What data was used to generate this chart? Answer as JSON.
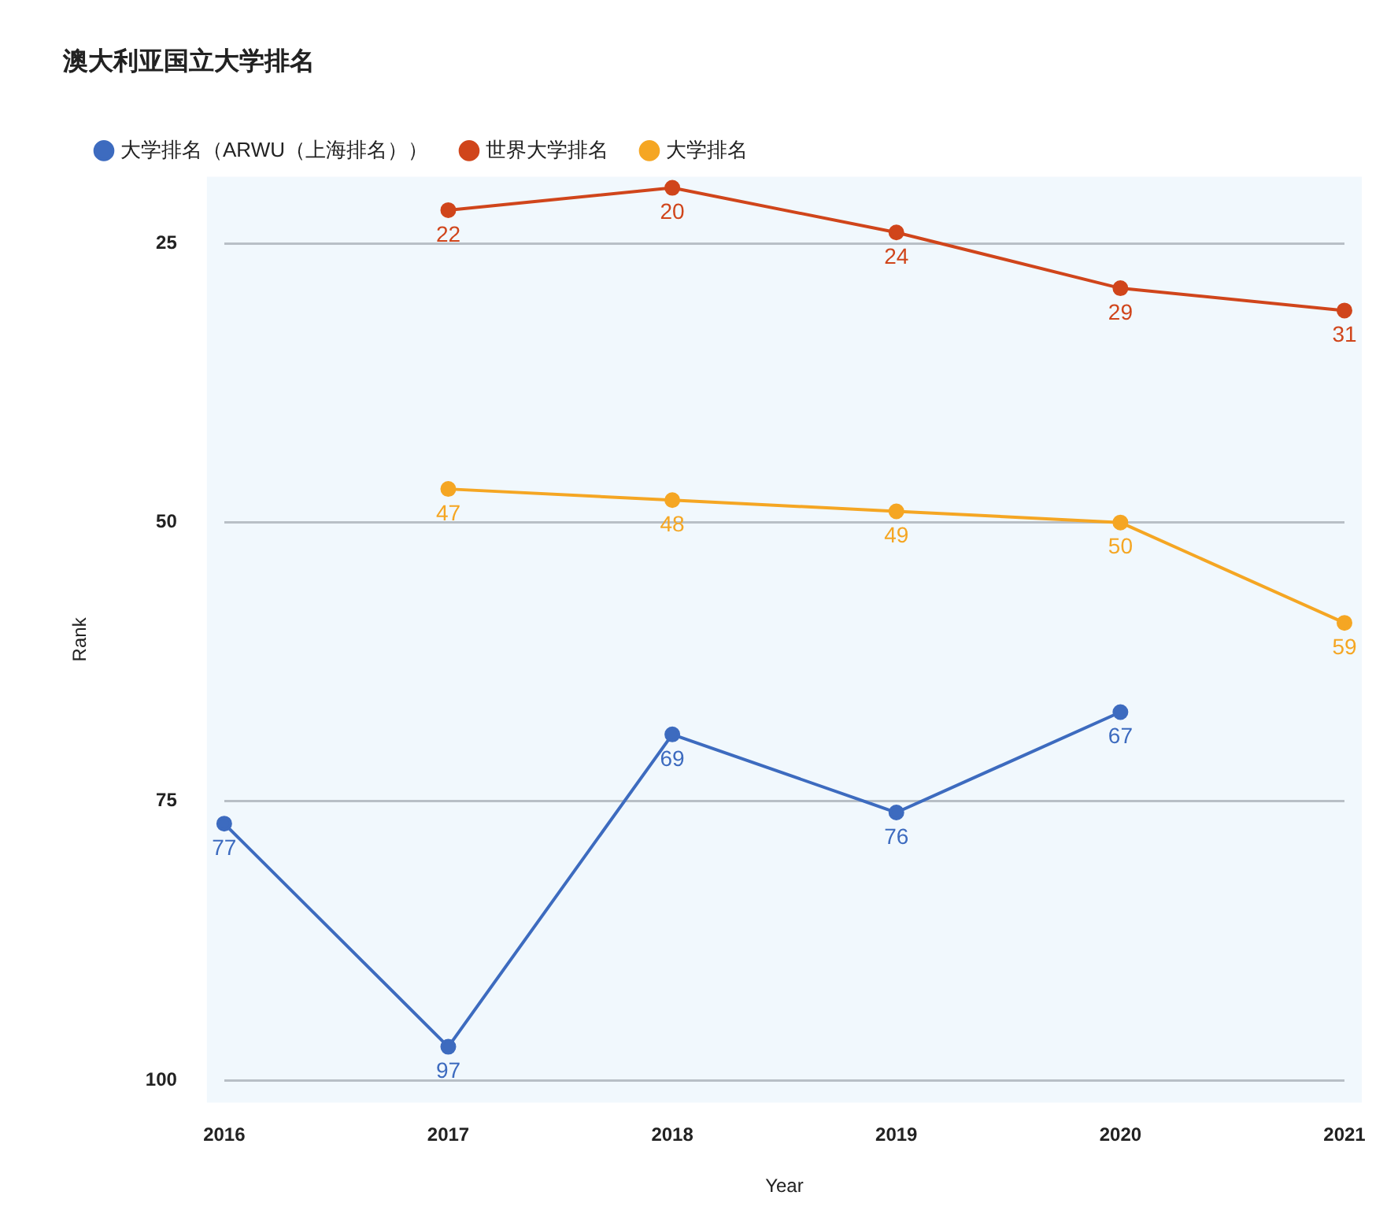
{
  "chart_data": {
    "type": "line",
    "title": "澳大利亚国立大学排名",
    "xlabel": "Year",
    "ylabel": "Rank",
    "categories": [
      "2016",
      "2017",
      "2018",
      "2019",
      "2020",
      "2021"
    ],
    "series": [
      {
        "name": "大学排名（ARWU（上海排名））",
        "color": "#3d6bbf",
        "values": [
          77,
          97,
          69,
          76,
          67,
          null
        ]
      },
      {
        "name": "世界大学排名",
        "color": "#d0451b",
        "values": [
          null,
          22,
          20,
          24,
          29,
          31
        ]
      },
      {
        "name": "大学排名",
        "color": "#f5a623",
        "values": [
          null,
          47,
          48,
          49,
          50,
          59
        ]
      }
    ],
    "ylim": [
      102,
      19
    ],
    "yticks": [
      25,
      50,
      75,
      100
    ],
    "grid": "y",
    "legend": "top left",
    "marker": "circle",
    "line_style": "solid",
    "data_labels": true
  }
}
